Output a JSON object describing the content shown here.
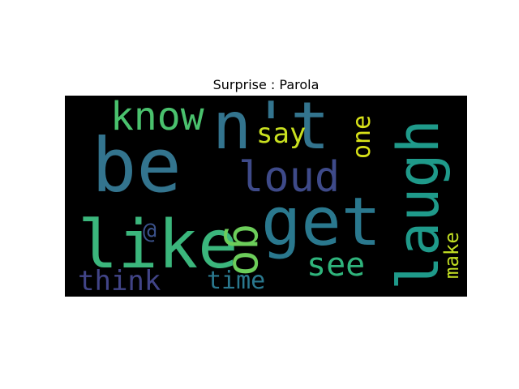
{
  "chart_data": {
    "type": "wordcloud",
    "title": "Surprise : Parola",
    "background_color": "#000000",
    "words": [
      {
        "text": "be",
        "color": "#33748e",
        "weight": 10,
        "rotated": false
      },
      {
        "text": "n't",
        "color": "#33748e",
        "weight": 9,
        "rotated": false
      },
      {
        "text": "get",
        "color": "#2a788e",
        "weight": 9,
        "rotated": false
      },
      {
        "text": "laugh",
        "color": "#1f9a8a",
        "weight": 9,
        "rotated": true
      },
      {
        "text": "like",
        "color": "#3bb67c",
        "weight": 9,
        "rotated": false
      },
      {
        "text": "know",
        "color": "#4ac16d",
        "weight": 6,
        "rotated": false
      },
      {
        "text": "loud",
        "color": "#3e4a89",
        "weight": 6,
        "rotated": false
      },
      {
        "text": "go",
        "color": "#6ccd5a",
        "weight": 6,
        "rotated": true
      },
      {
        "text": "see",
        "color": "#2fb47c",
        "weight": 5,
        "rotated": false
      },
      {
        "text": "say",
        "color": "#c9e020",
        "weight": 4,
        "rotated": false
      },
      {
        "text": "one",
        "color": "#d8e219",
        "weight": 4,
        "rotated": true
      },
      {
        "text": "think",
        "color": "#414487",
        "weight": 4,
        "rotated": false
      },
      {
        "text": "time",
        "color": "#2a788e",
        "weight": 3,
        "rotated": false
      },
      {
        "text": "make",
        "color": "#c2df23",
        "weight": 3,
        "rotated": true
      },
      {
        "text": "@",
        "color": "#3b528b",
        "weight": 2,
        "rotated": false
      }
    ]
  }
}
